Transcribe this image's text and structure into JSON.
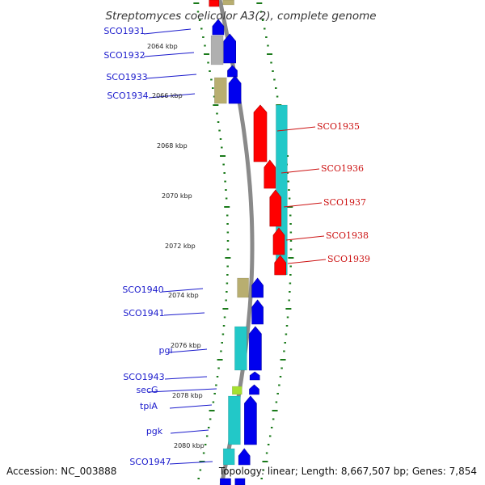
{
  "title": "Streptomyces coelicolor A3(2), complete genome",
  "footer": {
    "accession": "Accession: NC_003888",
    "stats": "Topology: linear; Length: 8,667,507 bp; Genes: 7,854"
  },
  "colors": {
    "backbone": "#8a8a8a",
    "tick": "#1a7a1a",
    "blue": "#0000ee",
    "red": "#ff0000",
    "cyan": "#22c8c8",
    "olive": "#b8ae70",
    "grey": "#b0b0b0",
    "lime": "#a6e030",
    "label_blue": "#1a1acc",
    "label_red": "#cc1111"
  },
  "kbp_labels": [
    "2064 kbp",
    "2066 kbp",
    "2068 kbp",
    "2070 kbp",
    "2072 kbp",
    "2074 kbp",
    "2076 kbp",
    "2078 kbp",
    "2080 kbp"
  ],
  "left_genes": [
    "SCO1931",
    "SCO1932",
    "SCO1933",
    "SCO1934",
    "SCO1940",
    "SCO1941",
    "pgi",
    "SCO1943",
    "secG",
    "tpiA",
    "pgk",
    "SCO1947"
  ],
  "right_genes": [
    "SCO1935",
    "SCO1936",
    "SCO1937",
    "SCO1938",
    "SCO1939"
  ]
}
